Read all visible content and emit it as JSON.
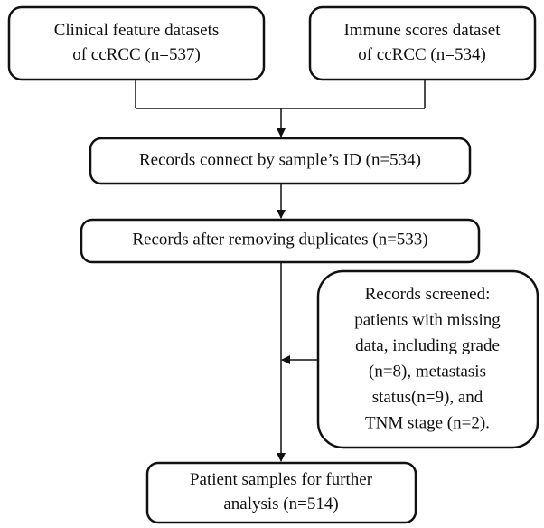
{
  "nodes": [
    {
      "lines": [
        "Clinical feature datasets",
        "of ccRCC (n=537)"
      ]
    },
    {
      "lines": [
        "Immune scores dataset",
        "of ccRCC (n=534)"
      ]
    },
    {
      "lines": [
        "Records connect by sample’s ID (n=534)"
      ]
    },
    {
      "lines": [
        "Records after removing duplicates (n=533)"
      ]
    },
    {
      "lines": [
        "Records screened:",
        "patients with missing",
        "data, including grade",
        "(n=8), metastasis",
        "status(n=9), and",
        "TNM stage (n=2)."
      ]
    },
    {
      "lines": [
        "Patient samples for further",
        "analysis (n=514)"
      ]
    }
  ]
}
